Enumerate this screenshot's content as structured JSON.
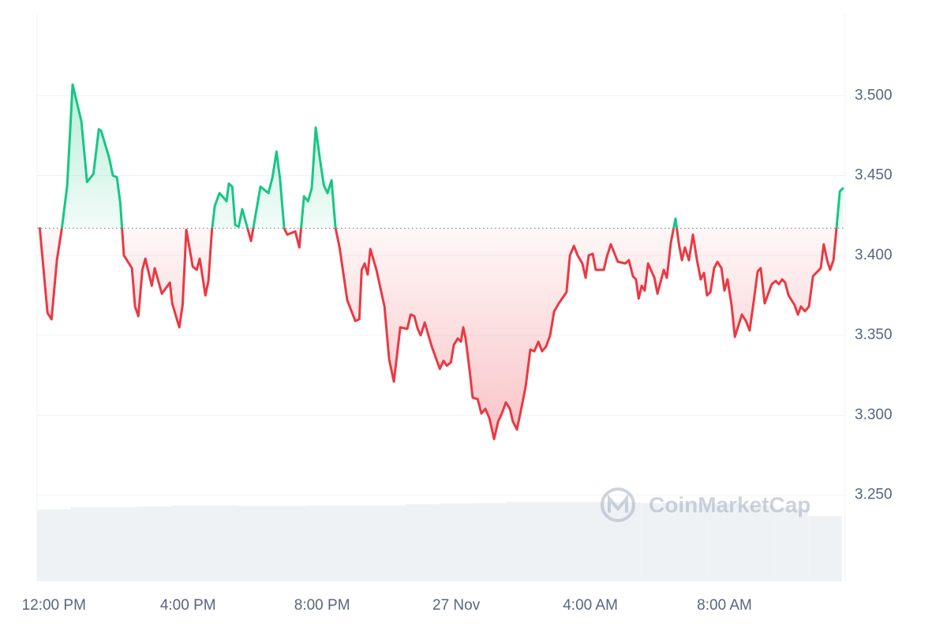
{
  "chart_data": {
    "type": "line",
    "x": [
      -0.42,
      -0.19,
      -0.07,
      0.09,
      0.24,
      0.4,
      0.56,
      0.82,
      0.99,
      1.18,
      1.34,
      1.41,
      1.65,
      1.76,
      1.88,
      1.98,
      2.09,
      2.33,
      2.42,
      2.52,
      2.64,
      2.73,
      2.92,
      3.01,
      3.22,
      3.46,
      3.53,
      3.74,
      3.84,
      3.95,
      4.14,
      4.26,
      4.35,
      4.52,
      4.61,
      4.71,
      4.8,
      4.94,
      5.15,
      5.22,
      5.32,
      5.41,
      5.51,
      5.62,
      5.88,
      6.16,
      6.4,
      6.52,
      6.64,
      6.75,
      6.87,
      6.96,
      7.2,
      7.32,
      7.46,
      7.58,
      7.69,
      7.81,
      7.93,
      8.05,
      8.16,
      8.28,
      8.4,
      8.52,
      8.75,
      8.99,
      9.11,
      9.18,
      9.27,
      9.36,
      9.44,
      9.62,
      9.86,
      10.0,
      10.14,
      10.33,
      10.54,
      10.64,
      10.75,
      10.85,
      10.94,
      11.06,
      11.27,
      11.51,
      11.62,
      11.72,
      11.84,
      11.93,
      12.05,
      12.14,
      12.21,
      12.28,
      12.4,
      12.49,
      12.64,
      12.75,
      12.87,
      12.99,
      13.13,
      13.25,
      13.36,
      13.48,
      13.6,
      13.69,
      13.81,
      13.93,
      14.07,
      14.21,
      14.33,
      14.45,
      14.56,
      14.68,
      14.8,
      14.92,
      15.06,
      15.29,
      15.39,
      15.51,
      15.62,
      15.76,
      15.86,
      15.95,
      16.07,
      16.16,
      16.4,
      16.49,
      16.61,
      16.82,
      17.04,
      17.15,
      17.27,
      17.36,
      17.44,
      17.53,
      17.62,
      17.72,
      17.91,
      18.0,
      18.19,
      18.28,
      18.4,
      18.54,
      18.64,
      18.73,
      18.82,
      18.94,
      19.06,
      19.18,
      19.29,
      19.39,
      19.48,
      19.58,
      19.69,
      19.79,
      19.91,
      20.0,
      20.09,
      20.21,
      20.31,
      20.52,
      20.64,
      20.75,
      20.87,
      20.99,
      21.08,
      21.2,
      21.41,
      21.53,
      21.62,
      21.72,
      21.81,
      21.91,
      22.09,
      22.19,
      22.28,
      22.4,
      22.52,
      22.64,
      22.87,
      22.96,
      23.06,
      23.15,
      23.25,
      23.34,
      23.44,
      23.53
    ],
    "series": [
      {
        "up_color": "#16c784",
        "down_color": "#ea3943",
        "values": [
          3.417,
          3.364,
          3.36,
          3.397,
          3.417,
          3.444,
          3.507,
          3.484,
          3.446,
          3.451,
          3.479,
          3.478,
          3.461,
          3.45,
          3.449,
          3.433,
          3.4,
          3.392,
          3.368,
          3.362,
          3.391,
          3.398,
          3.381,
          3.392,
          3.376,
          3.383,
          3.37,
          3.355,
          3.369,
          3.416,
          3.393,
          3.391,
          3.398,
          3.375,
          3.384,
          3.415,
          3.431,
          3.439,
          3.434,
          3.445,
          3.443,
          3.419,
          3.418,
          3.429,
          3.409,
          3.443,
          3.439,
          3.449,
          3.465,
          3.447,
          3.417,
          3.413,
          3.415,
          3.405,
          3.437,
          3.434,
          3.442,
          3.48,
          3.461,
          3.444,
          3.439,
          3.447,
          3.417,
          3.405,
          3.372,
          3.359,
          3.36,
          3.391,
          3.395,
          3.388,
          3.404,
          3.391,
          3.368,
          3.335,
          3.321,
          3.355,
          3.354,
          3.363,
          3.362,
          3.354,
          3.35,
          3.358,
          3.343,
          3.329,
          3.334,
          3.331,
          3.333,
          3.344,
          3.348,
          3.346,
          3.355,
          3.348,
          3.328,
          3.311,
          3.31,
          3.301,
          3.304,
          3.298,
          3.285,
          3.296,
          3.301,
          3.308,
          3.304,
          3.296,
          3.291,
          3.303,
          3.318,
          3.341,
          3.34,
          3.346,
          3.34,
          3.343,
          3.35,
          3.365,
          3.37,
          3.377,
          3.4,
          3.406,
          3.4,
          3.395,
          3.386,
          3.4,
          3.401,
          3.391,
          3.391,
          3.399,
          3.407,
          3.396,
          3.395,
          3.397,
          3.387,
          3.385,
          3.373,
          3.381,
          3.378,
          3.395,
          3.386,
          3.376,
          3.391,
          3.386,
          3.408,
          3.423,
          3.407,
          3.397,
          3.405,
          3.397,
          3.413,
          3.397,
          3.385,
          3.389,
          3.375,
          3.377,
          3.392,
          3.396,
          3.392,
          3.378,
          3.385,
          3.369,
          3.349,
          3.363,
          3.359,
          3.353,
          3.371,
          3.39,
          3.392,
          3.37,
          3.382,
          3.384,
          3.382,
          3.385,
          3.383,
          3.375,
          3.369,
          3.363,
          3.368,
          3.365,
          3.368,
          3.387,
          3.392,
          3.407,
          3.397,
          3.391,
          3.397,
          3.417,
          3.44,
          3.442
        ]
      }
    ],
    "baseline": 3.417,
    "xlim": [
      -0.5,
      23.6
    ],
    "xticks": [
      {
        "value": 0,
        "label": "12:00 PM"
      },
      {
        "value": 4,
        "label": "4:00 PM"
      },
      {
        "value": 8,
        "label": "8:00 PM"
      },
      {
        "value": 12,
        "label": "27 Nov"
      },
      {
        "value": 16,
        "label": "4:00 AM"
      },
      {
        "value": 20,
        "label": "8:00 AM"
      }
    ],
    "ylim": [
      3.196,
      3.551
    ],
    "yticks": [
      {
        "value": 3.25,
        "label": "3.250"
      },
      {
        "value": 3.3,
        "label": "3.300"
      },
      {
        "value": 3.35,
        "label": "3.350"
      },
      {
        "value": 3.4,
        "label": "3.400"
      },
      {
        "value": 3.45,
        "label": "3.450"
      },
      {
        "value": 3.5,
        "label": "3.500"
      }
    ],
    "grid": true,
    "volume": {
      "color": "#eff2f5",
      "ylim": [
        0,
        100
      ],
      "x": [
        0,
        1,
        2,
        3,
        4,
        5,
        6,
        7,
        8,
        9,
        10,
        11,
        12,
        13,
        14,
        15,
        16,
        17,
        18,
        19,
        20,
        21,
        22,
        23
      ],
      "values": [
        12.7,
        13.1,
        13.1,
        13.2,
        13.4,
        13.4,
        13.3,
        13.3,
        13.4,
        13.4,
        13.4,
        13.6,
        13.7,
        13.8,
        14.0,
        14.0,
        14.0,
        13.9,
        13.8,
        13.8,
        13.7,
        13.4,
        12.8,
        11.5
      ]
    },
    "watermark": "CoinMarketCap"
  }
}
